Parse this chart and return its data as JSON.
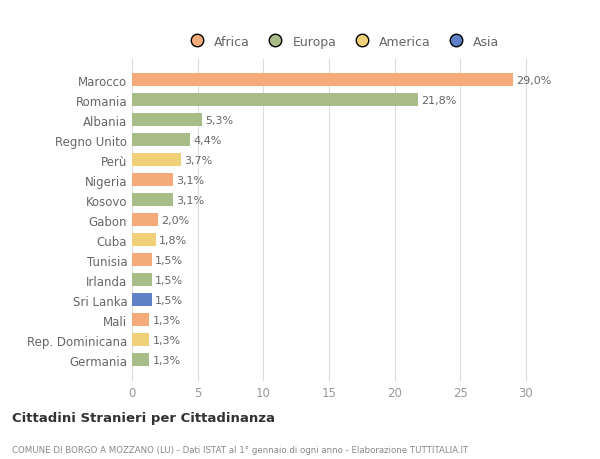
{
  "countries": [
    "Germania",
    "Rep. Dominicana",
    "Mali",
    "Sri Lanka",
    "Irlanda",
    "Tunisia",
    "Cuba",
    "Gabon",
    "Kosovo",
    "Nigeria",
    "Perù",
    "Regno Unito",
    "Albania",
    "Romania",
    "Marocco"
  ],
  "values": [
    1.3,
    1.3,
    1.3,
    1.5,
    1.5,
    1.5,
    1.8,
    2.0,
    3.1,
    3.1,
    3.7,
    4.4,
    5.3,
    21.8,
    29.0
  ],
  "labels": [
    "1,3%",
    "1,3%",
    "1,3%",
    "1,5%",
    "1,5%",
    "1,5%",
    "1,8%",
    "2,0%",
    "3,1%",
    "3,1%",
    "3,7%",
    "4,4%",
    "5,3%",
    "21,8%",
    "29,0%"
  ],
  "continents": [
    "Europa",
    "America",
    "Africa",
    "Asia",
    "Europa",
    "Africa",
    "America",
    "Africa",
    "Europa",
    "Africa",
    "America",
    "Europa",
    "Europa",
    "Europa",
    "Africa"
  ],
  "continent_colors": {
    "Africa": "#F5AA7A",
    "Europa": "#A8BC88",
    "America": "#F0D078",
    "Asia": "#6080C8"
  },
  "legend_items": [
    "Africa",
    "Europa",
    "America",
    "Asia"
  ],
  "legend_colors": [
    "#F5AA7A",
    "#A8BC88",
    "#F0D078",
    "#6080C8"
  ],
  "title": "Cittadini Stranieri per Cittadinanza",
  "subtitle": "COMUNE DI BORGO A MOZZANO (LU) - Dati ISTAT al 1° gennaio di ogni anno - Elaborazione TUTTITALIA.IT",
  "xlim": [
    0,
    32
  ],
  "xticks": [
    0,
    5,
    10,
    15,
    20,
    25,
    30
  ],
  "background_color": "#ffffff",
  "grid_color": "#dddddd",
  "bar_height": 0.65,
  "label_fontsize": 8.0,
  "ytick_fontsize": 8.5,
  "xtick_fontsize": 8.5
}
